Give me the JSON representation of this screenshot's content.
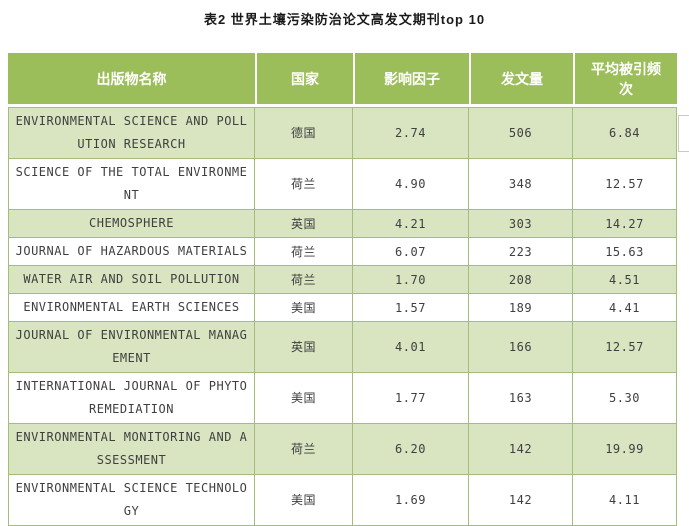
{
  "title": "表2 世界土壤污染防治论文高发文期刊top 10",
  "table": {
    "headers": [
      "出版物名称",
      "国家",
      "影响因子",
      "发文量",
      "平均被引频次"
    ],
    "rows": [
      {
        "name": "ENVIRONMENTAL SCIENCE AND POLLUTION  RESEARCH",
        "country": "德国",
        "impact_factor": "2.74",
        "publication_count": "506",
        "avg_citations": "6.84"
      },
      {
        "name": "SCIENCE OF THE TOTAL ENVIRONMENT",
        "country": "荷兰",
        "impact_factor": "4.90",
        "publication_count": "348",
        "avg_citations": "12.57"
      },
      {
        "name": "CHEMOSPHERE",
        "country": "英国",
        "impact_factor": "4.21",
        "publication_count": "303",
        "avg_citations": "14.27"
      },
      {
        "name": "JOURNAL OF HAZARDOUS MATERIALS",
        "country": "荷兰",
        "impact_factor": "6.07",
        "publication_count": "223",
        "avg_citations": "15.63"
      },
      {
        "name": "WATER AIR AND SOIL POLLUTION",
        "country": "荷兰",
        "impact_factor": "1.70",
        "publication_count": "208",
        "avg_citations": "4.51"
      },
      {
        "name": "ENVIRONMENTAL EARTH SCIENCES",
        "country": "美国",
        "impact_factor": "1.57",
        "publication_count": "189",
        "avg_citations": "4.41"
      },
      {
        "name": "JOURNAL OF ENVIRONMENTAL MANAGEMENT",
        "country": "英国",
        "impact_factor": "4.01",
        "publication_count": "166",
        "avg_citations": "12.57"
      },
      {
        "name": "INTERNATIONAL JOURNAL OF PHYTOREMEDIATION",
        "country": "美国",
        "impact_factor": "1.77",
        "publication_count": "163",
        "avg_citations": "5.30"
      },
      {
        "name": "ENVIRONMENTAL MONITORING AND ASSESSMENT",
        "country": "荷兰",
        "impact_factor": "6.20",
        "publication_count": "142",
        "avg_citations": "19.99"
      },
      {
        "name": "ENVIRONMENTAL SCIENCE TECHNOLOGY",
        "country": "美国",
        "impact_factor": "1.69",
        "publication_count": "142",
        "avg_citations": "4.11"
      }
    ]
  },
  "colors": {
    "header_bg": "#9bbe5a",
    "alt_row_bg": "#d9e5c1",
    "grid_border": "#a6bc7b",
    "header_text": "#ffffff",
    "body_text": "#3f3f3f",
    "title_text": "#1a1a1a",
    "scrollbar_border": "#c9c9c9"
  }
}
